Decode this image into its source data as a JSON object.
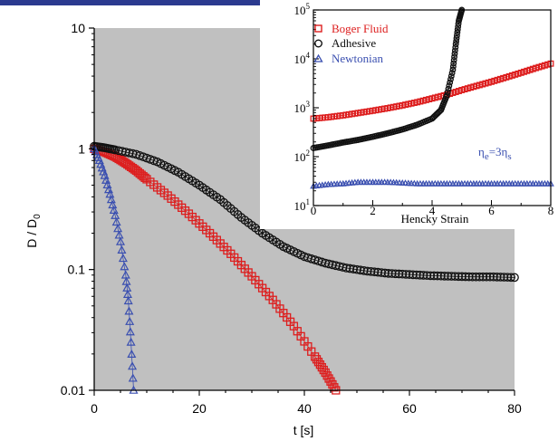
{
  "chart_data": [
    {
      "type": "scatter",
      "title": "",
      "xlabel": "t [s]",
      "ylabel": "D / D",
      "ylabel_subscript": "0",
      "xscale": "linear",
      "yscale": "log",
      "xlim": [
        0,
        80
      ],
      "ylim": [
        0.01,
        10
      ],
      "xticks": [
        "0",
        "20",
        "40",
        "60",
        "80"
      ],
      "yticks": [
        "0.01",
        "0.1",
        "1",
        "10"
      ],
      "background": "#c0c0c0",
      "grid": false,
      "series": [
        {
          "color": "#dd1e1e",
          "marker": "square",
          "x": [
            0,
            2,
            4,
            6,
            8,
            10,
            14,
            18,
            22,
            26,
            30,
            34,
            38,
            42,
            44,
            46
          ],
          "y": [
            1.0,
            0.94,
            0.86,
            0.76,
            0.66,
            0.56,
            0.41,
            0.29,
            0.2,
            0.135,
            0.088,
            0.056,
            0.034,
            0.019,
            0.014,
            0.01
          ]
        },
        {
          "color": "#111111",
          "marker": "circle",
          "x": [
            0,
            2,
            4,
            8,
            12,
            16,
            20,
            24,
            28,
            32,
            36,
            40,
            44,
            48,
            52,
            56,
            60,
            64,
            68,
            72,
            76,
            80
          ],
          "y": [
            1.05,
            1.02,
            0.98,
            0.9,
            0.78,
            0.64,
            0.5,
            0.38,
            0.27,
            0.2,
            0.155,
            0.128,
            0.113,
            0.103,
            0.097,
            0.093,
            0.091,
            0.089,
            0.088,
            0.087,
            0.087,
            0.086
          ]
        },
        {
          "color": "#3a4fb0",
          "marker": "triangle",
          "x": [
            0,
            1,
            2,
            3,
            4,
            5,
            6,
            6.5,
            7,
            7.5
          ],
          "y": [
            1.0,
            0.8,
            0.6,
            0.42,
            0.28,
            0.17,
            0.09,
            0.055,
            0.025,
            0.01
          ]
        }
      ]
    },
    {
      "type": "scatter",
      "title": "",
      "xlabel": "Hencky Strain",
      "ylabel": "",
      "xscale": "linear",
      "yscale": "log",
      "xlim": [
        0,
        8
      ],
      "ylim": [
        10,
        100000
      ],
      "xticks": [
        "0",
        "2",
        "4",
        "6",
        "8"
      ],
      "ytick_values": [
        10,
        100,
        1000,
        10000,
        100000
      ],
      "ytick_base": "10",
      "ytick_exponents": [
        "1",
        "2",
        "3",
        "4",
        "5"
      ],
      "background": "#ffffff",
      "grid": false,
      "legend": {
        "placement": "top-left"
      },
      "annotation": {
        "main": "η",
        "sub1": "e",
        "mid": "=3η",
        "sub2": "s",
        "color": "#3a4fb0"
      },
      "series": [
        {
          "name": "Boger Fluid",
          "color": "#dd1e1e",
          "marker": "square",
          "x": [
            0,
            0.5,
            1,
            1.5,
            2,
            2.5,
            3,
            3.5,
            4,
            4.5,
            5,
            5.5,
            6,
            6.5,
            7,
            7.5,
            8
          ],
          "y": [
            600,
            640,
            700,
            780,
            870,
            980,
            1120,
            1300,
            1550,
            1850,
            2300,
            2800,
            3400,
            4200,
            5200,
            6500,
            8000
          ]
        },
        {
          "name": "Adhesive",
          "color": "#111111",
          "marker": "circle",
          "x": [
            0,
            0.5,
            1,
            1.5,
            2,
            2.5,
            3,
            3.5,
            4,
            4.3,
            4.5,
            4.7,
            4.8,
            4.9,
            5.0
          ],
          "y": [
            150,
            170,
            195,
            220,
            255,
            300,
            360,
            450,
            600,
            900,
            1800,
            6000,
            20000,
            60000,
            100000
          ]
        },
        {
          "name": "Newtonian",
          "color": "#3a4fb0",
          "marker": "triangle",
          "x": [
            0,
            0.5,
            1,
            1.5,
            2,
            2.5,
            3,
            3.5,
            4,
            4.5,
            5,
            5.5,
            6,
            6.5,
            7,
            7.5,
            8
          ],
          "y": [
            25,
            27,
            28,
            30,
            30,
            30,
            29,
            28,
            28,
            28,
            28,
            28,
            28,
            28,
            28,
            28,
            28
          ]
        }
      ]
    }
  ]
}
